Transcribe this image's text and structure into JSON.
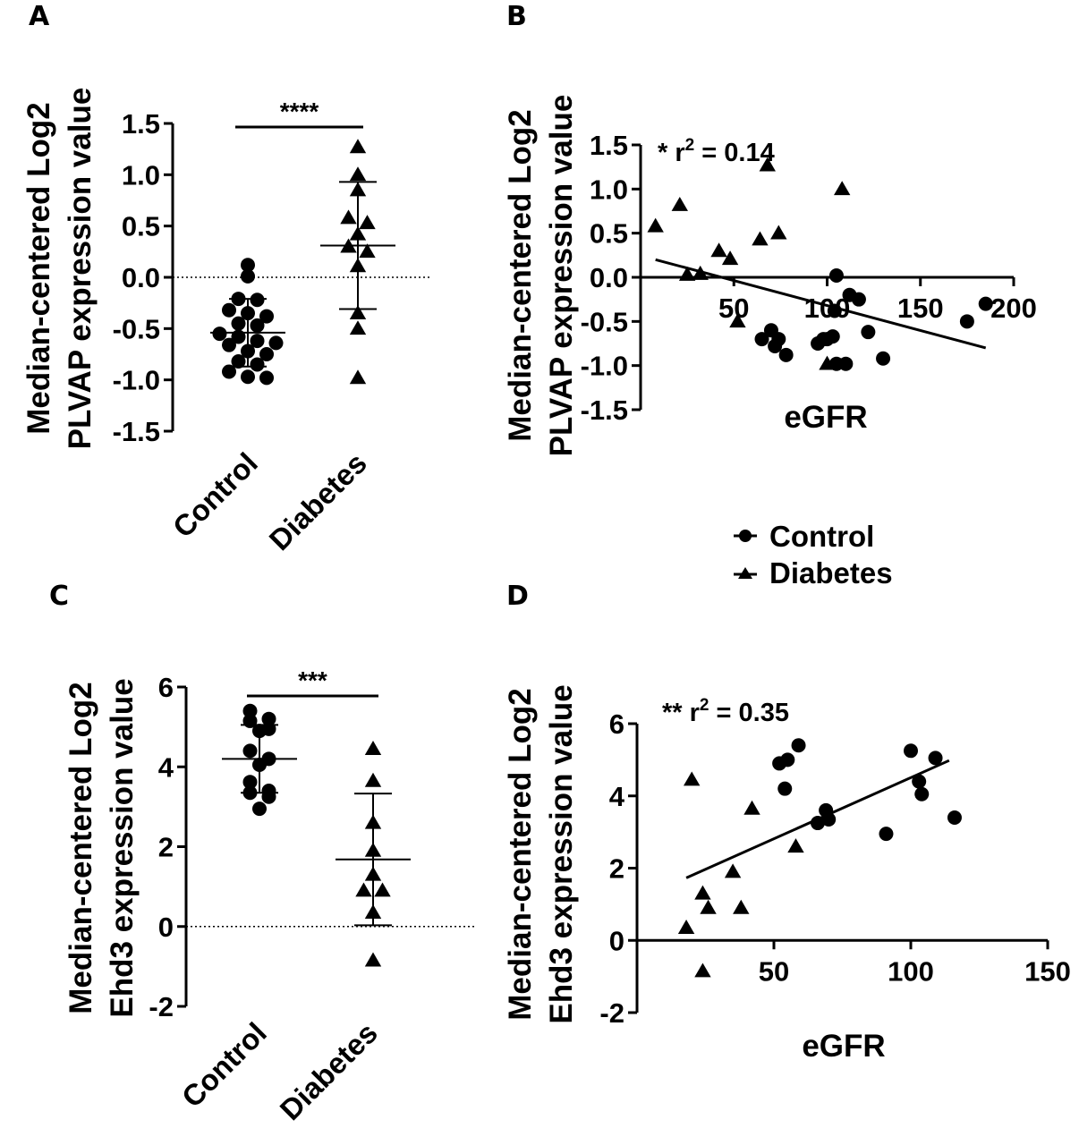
{
  "legend": {
    "entries": [
      {
        "name": "Control",
        "marker": "circle"
      },
      {
        "name": "Diabetes",
        "marker": "triangle"
      }
    ]
  },
  "colors": {
    "ink": "#000000",
    "background": "#ffffff"
  },
  "chart_data": [
    {
      "panel": "A",
      "type": "scatter",
      "ylabel": [
        "Median-centered Log2",
        "PLVAP expression value"
      ],
      "categories": [
        "Control",
        "Diabetes"
      ],
      "ylim": [
        -1.5,
        1.5
      ],
      "yticks": [
        -1.5,
        -1.0,
        -0.5,
        0.0,
        0.5,
        1.0,
        1.5
      ],
      "yticklabels": [
        "-1.5",
        "-1.0",
        "-0.5",
        "0.0",
        "0.5",
        "1.0",
        "1.5"
      ],
      "zero_line": true,
      "significance": "****",
      "series": [
        {
          "name": "Control",
          "marker": "circle",
          "mean": -0.54,
          "sd": 0.33,
          "values": [
            0.12,
            0.01,
            -0.21,
            -0.22,
            -0.32,
            -0.35,
            -0.38,
            -0.45,
            -0.47,
            -0.55,
            -0.58,
            -0.62,
            -0.64,
            -0.66,
            -0.72,
            -0.75,
            -0.82,
            -0.85,
            -0.92,
            -0.97,
            -0.98
          ]
        },
        {
          "name": "Diabetes",
          "marker": "triangle",
          "mean": 0.31,
          "sd": 0.62,
          "values": [
            1.27,
            1.0,
            0.85,
            0.58,
            0.53,
            0.42,
            0.3,
            0.25,
            0.11,
            -0.35,
            -0.5,
            -0.98
          ]
        }
      ]
    },
    {
      "panel": "B",
      "type": "scatter",
      "xlabel": "eGFR",
      "ylabel": [
        "Median-centered Log2",
        "PLVAP expression value"
      ],
      "xlim": [
        0,
        200
      ],
      "ylim": [
        -1.5,
        1.5
      ],
      "xticks": [
        50,
        100,
        150,
        200
      ],
      "xticklabels": [
        "50",
        "100",
        "150",
        "200"
      ],
      "yticks": [
        -1.5,
        -1.0,
        -0.5,
        0.0,
        0.5,
        1.0,
        1.5
      ],
      "yticklabels": [
        "-1.5",
        "-1.0",
        "-0.5",
        "0.0",
        "0.5",
        "1.0",
        "1.5"
      ],
      "annotation": {
        "prefix": "* r",
        "sup": "2",
        "suffix": " = 0.14"
      },
      "regression": {
        "x": [
          8,
          185
        ],
        "y": [
          0.2,
          -0.8
        ]
      },
      "series": [
        {
          "name": "Control",
          "marker": "circle",
          "x": [
            65,
            72,
            70,
            74,
            78,
            95,
            100,
            103,
            105,
            105,
            110,
            112,
            117,
            122,
            130,
            185,
            175,
            98,
            104
          ],
          "y": [
            -0.7,
            -0.78,
            -0.6,
            -0.7,
            -0.88,
            -0.75,
            -0.7,
            -0.67,
            0.02,
            -0.98,
            -0.98,
            -0.2,
            -0.25,
            -0.62,
            -0.92,
            -0.3,
            -0.5,
            -0.7,
            -0.38
          ]
        },
        {
          "name": "Diabetes",
          "marker": "triangle",
          "x": [
            8,
            21,
            25,
            32,
            42,
            48,
            52,
            68,
            74,
            64,
            100,
            108
          ],
          "y": [
            0.58,
            0.82,
            0.03,
            0.04,
            0.3,
            0.21,
            -0.5,
            1.27,
            0.5,
            0.43,
            -0.98,
            1.0
          ]
        }
      ]
    },
    {
      "panel": "C",
      "type": "scatter",
      "ylabel": [
        "Median-centered Log2",
        "Ehd3 expression value"
      ],
      "categories": [
        "Control",
        "Diabetes"
      ],
      "ylim": [
        -2,
        6
      ],
      "yticks": [
        -2,
        0,
        2,
        4,
        6
      ],
      "yticklabels": [
        "-2",
        "0",
        "2",
        "4",
        "6"
      ],
      "zero_line": true,
      "significance": "***",
      "series": [
        {
          "name": "Control",
          "marker": "circle",
          "mean": 4.2,
          "sd": 0.85,
          "values": [
            5.4,
            5.2,
            5.15,
            4.95,
            4.9,
            4.4,
            4.2,
            4.05,
            3.62,
            3.4,
            3.35,
            3.25,
            2.95
          ]
        },
        {
          "name": "Diabetes",
          "marker": "triangle",
          "mean": 1.68,
          "sd": 1.65,
          "values": [
            4.45,
            3.65,
            2.6,
            1.9,
            1.3,
            0.9,
            0.9,
            0.35,
            -0.85
          ]
        }
      ]
    },
    {
      "panel": "D",
      "type": "scatter",
      "xlabel": "eGFR",
      "ylabel": [
        "Median-centered Log2",
        "Ehd3 expression value"
      ],
      "xlim": [
        0,
        150
      ],
      "ylim": [
        -2,
        6
      ],
      "xticks": [
        50,
        100,
        150
      ],
      "xticklabels": [
        "50",
        "100",
        "150"
      ],
      "yticks": [
        -2,
        0,
        2,
        4,
        6
      ],
      "yticklabels": [
        "-2",
        "0",
        "2",
        "4",
        "6"
      ],
      "annotation": {
        "prefix": "** r",
        "sup": "2",
        "suffix": " = 0.35"
      },
      "regression": {
        "x": [
          18,
          114
        ],
        "y": [
          1.73,
          4.98
        ]
      },
      "series": [
        {
          "name": "Control",
          "marker": "circle",
          "x": [
            52,
            55,
            59,
            54,
            66,
            69,
            70,
            91,
            100,
            103,
            104,
            109,
            116
          ],
          "y": [
            4.9,
            5.0,
            5.4,
            4.2,
            3.25,
            3.6,
            3.35,
            2.95,
            5.25,
            4.4,
            4.05,
            5.05,
            3.4
          ]
        },
        {
          "name": "Diabetes",
          "marker": "triangle",
          "x": [
            20,
            18,
            24,
            26,
            35,
            38,
            42,
            58,
            24
          ],
          "y": [
            4.45,
            0.35,
            1.3,
            0.9,
            1.9,
            0.9,
            3.65,
            2.6,
            -0.85
          ]
        }
      ]
    }
  ]
}
